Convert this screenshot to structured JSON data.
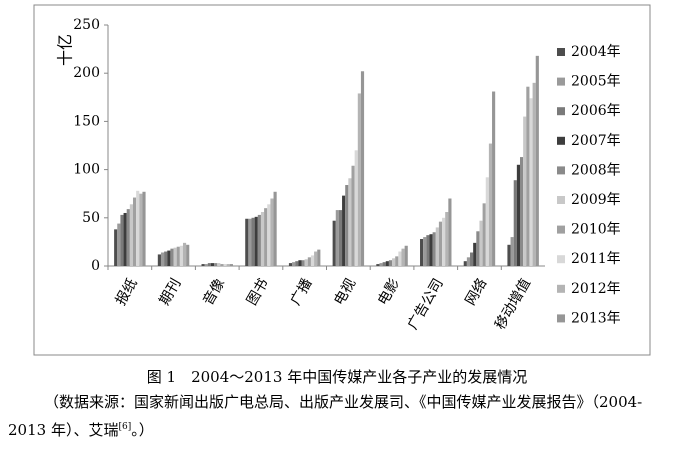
{
  "chart_data": {
    "type": "bar",
    "y_label": "十亿",
    "categories": [
      "报纸",
      "期刊",
      "音像",
      "图书",
      "广播",
      "电视",
      "电影",
      "广告公司",
      "网络",
      "移动增值"
    ],
    "series": [
      {
        "name": "2004年",
        "color": "#4d4d4d",
        "values": [
          38,
          12,
          2,
          49,
          3,
          47,
          2,
          28,
          5,
          22
        ]
      },
      {
        "name": "2005年",
        "color": "#9a9a9a",
        "values": [
          44,
          14,
          2,
          49,
          4,
          58,
          3,
          30,
          9,
          30
        ]
      },
      {
        "name": "2006年",
        "color": "#7a7a7a",
        "values": [
          53,
          15,
          3,
          50,
          5,
          58,
          4,
          32,
          14,
          89
        ]
      },
      {
        "name": "2007年",
        "color": "#3d3d3d",
        "values": [
          55,
          16,
          3,
          51,
          6,
          73,
          5,
          33,
          24,
          105
        ]
      },
      {
        "name": "2008年",
        "color": "#8a8a8a",
        "values": [
          59,
          18,
          3,
          53,
          6,
          84,
          6,
          35,
          36,
          113
        ]
      },
      {
        "name": "2009年",
        "color": "#c8c8c8",
        "values": [
          64,
          19,
          3,
          56,
          7,
          91,
          8,
          40,
          47,
          155
        ]
      },
      {
        "name": "2010年",
        "color": "#a0a0a0",
        "values": [
          71,
          20,
          2,
          60,
          9,
          104,
          10,
          46,
          65,
          186
        ]
      },
      {
        "name": "2011年",
        "color": "#d8d8d8",
        "values": [
          78,
          21,
          2,
          64,
          11,
          120,
          15,
          50,
          92,
          174
        ]
      },
      {
        "name": "2012年",
        "color": "#b4b4b4",
        "values": [
          75,
          24,
          2,
          70,
          15,
          179,
          18,
          56,
          127,
          190
        ]
      },
      {
        "name": "2013年",
        "color": "#969696",
        "values": [
          77,
          22,
          2,
          77,
          17,
          202,
          21,
          70,
          181,
          218
        ]
      }
    ],
    "ylim": [
      0,
      250
    ],
    "yticks": [
      0,
      50,
      100,
      150,
      200,
      250
    ],
    "legend": "right"
  },
  "caption": "图 1　2004～2013 年中国传媒产业各子产业的发展情况",
  "source": {
    "text": "（数据来源：国家新闻出版广电总局、出版产业发展司、《中国传媒产业发展报告》（2004-2013 年）、艾瑞",
    "ref": "[6]",
    "end": "。）"
  }
}
